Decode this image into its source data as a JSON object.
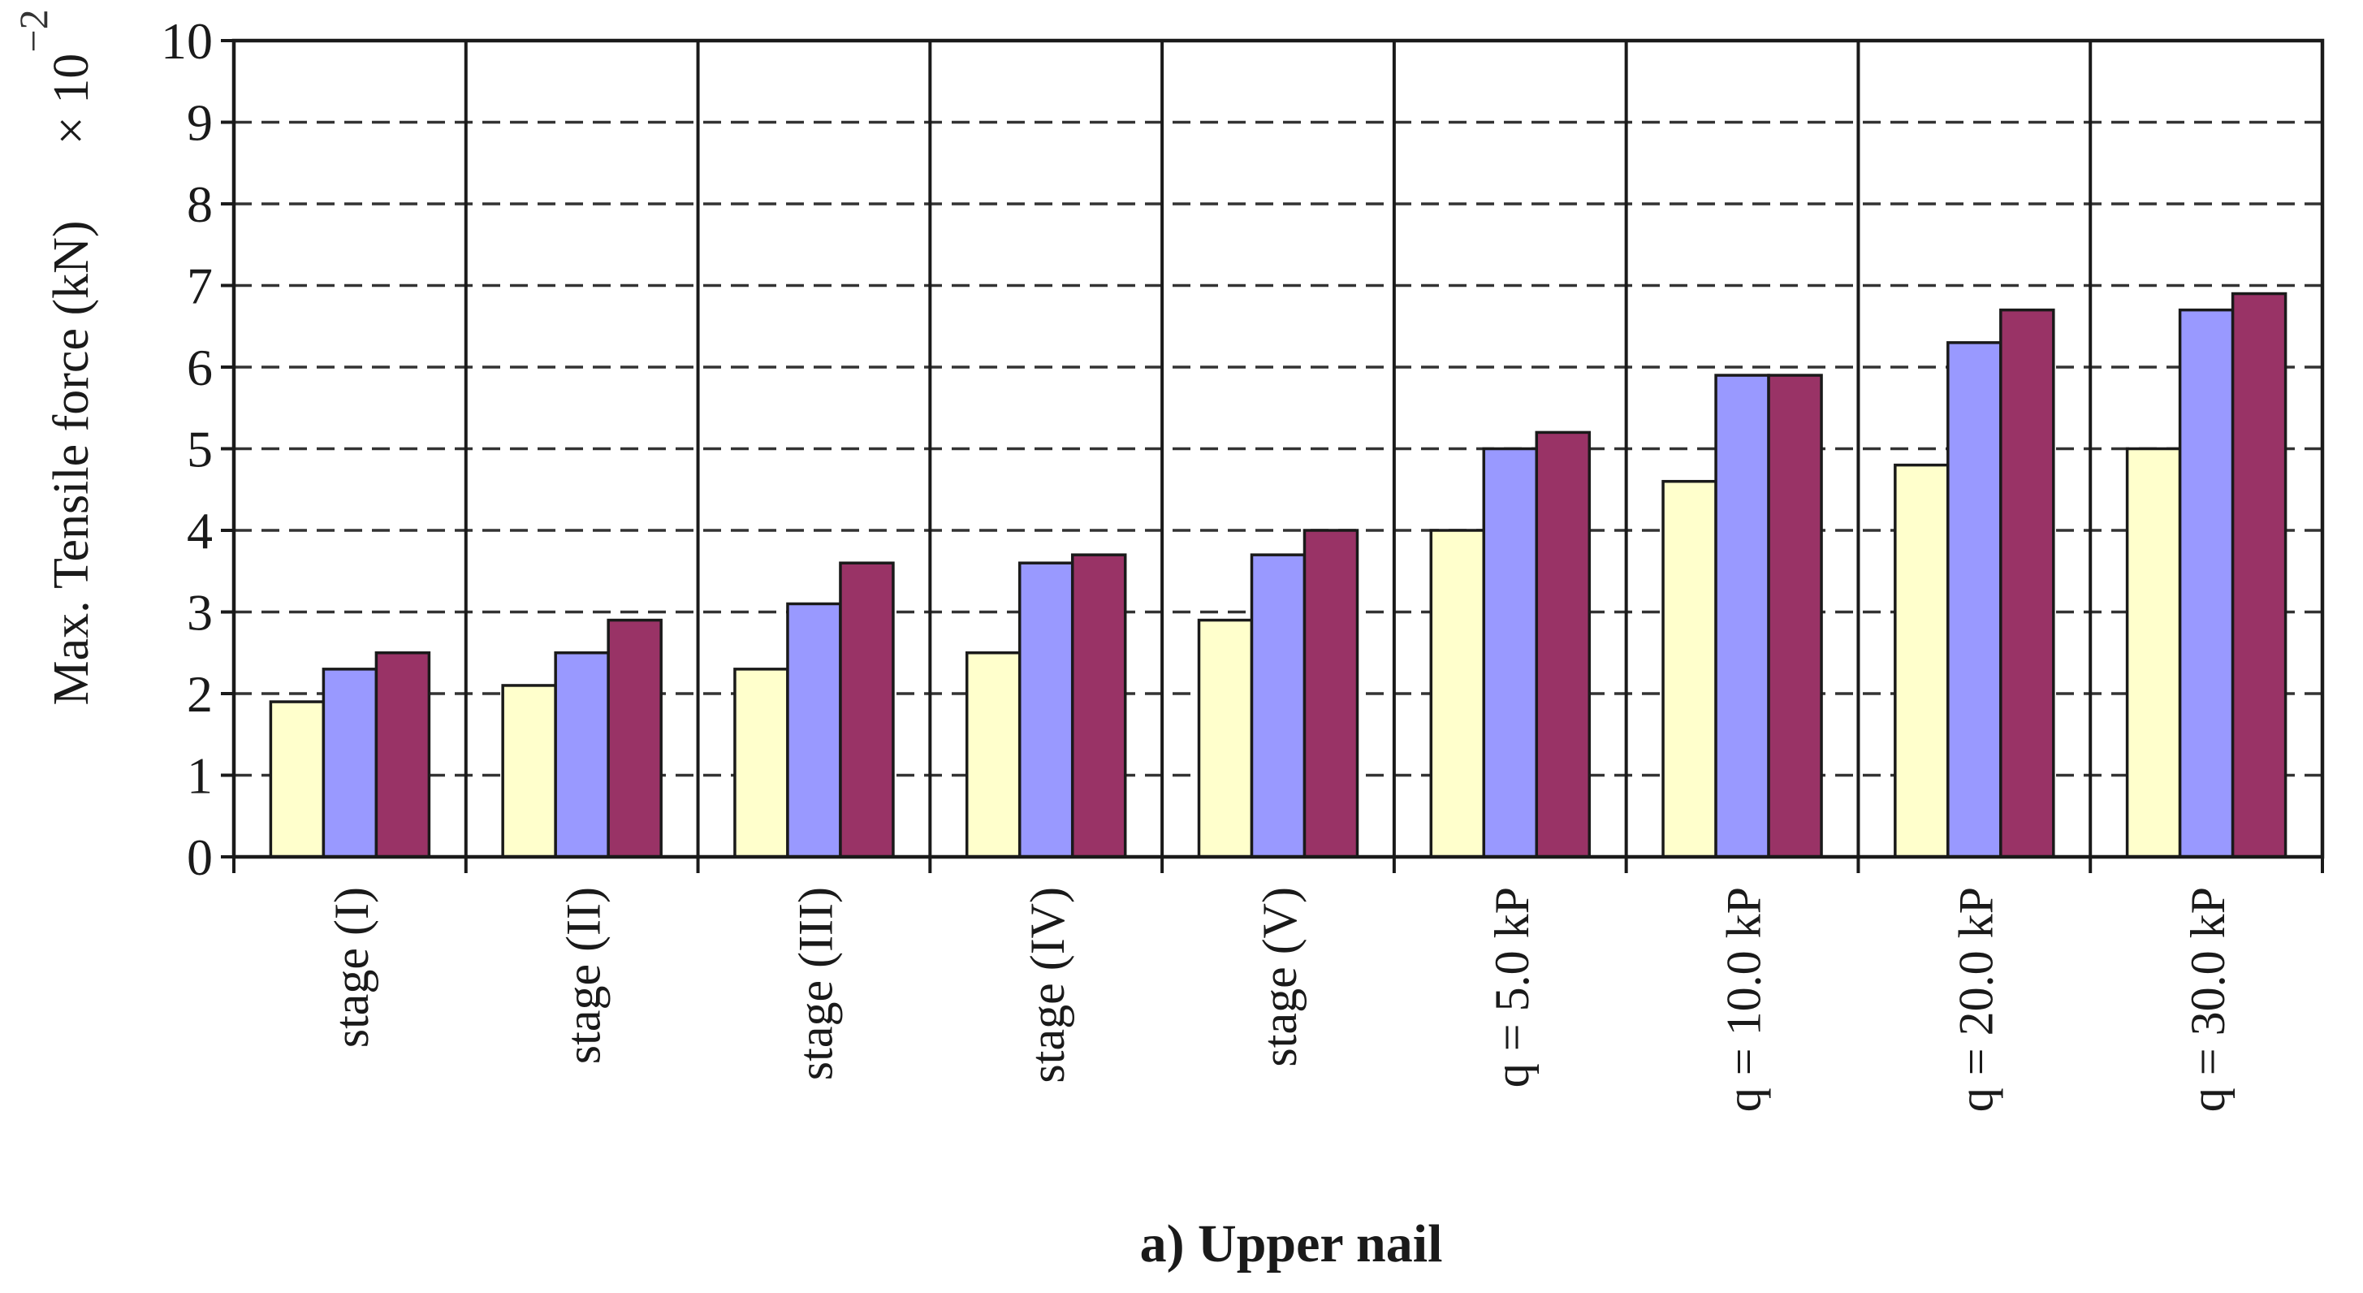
{
  "chart_data": {
    "type": "bar",
    "title": "",
    "caption": "a) Upper nail",
    "xlabel": "",
    "ylabel": "Max. Tensile force (kN)",
    "ylabel_multiplier": "× 10",
    "ylabel_exponent": "−2",
    "ylim": [
      0,
      10
    ],
    "yticks": [
      "0",
      "1",
      "2",
      "3",
      "4",
      "5",
      "6",
      "7",
      "8",
      "9",
      "10"
    ],
    "grid": "horizontal-dashed",
    "legend": "none",
    "categories": [
      "stage (I)",
      "stage (II)",
      "stage (III)",
      "stage (IV)",
      "stage (V)",
      "q = 5.0 kP",
      "q = 10.0 kP",
      "q = 20.0 kP",
      "q = 30.0 kP"
    ],
    "series": [
      {
        "color": "#ffffcc",
        "values": [
          1.9,
          2.1,
          2.3,
          2.5,
          2.9,
          4.0,
          4.6,
          4.8,
          5.0
        ]
      },
      {
        "color": "#9999ff",
        "values": [
          2.3,
          2.5,
          3.1,
          3.6,
          3.7,
          5.0,
          5.9,
          6.3,
          6.7
        ]
      },
      {
        "color": "#993366",
        "values": [
          2.5,
          2.9,
          3.6,
          3.7,
          4.0,
          5.2,
          5.9,
          6.7,
          6.9
        ]
      }
    ]
  }
}
